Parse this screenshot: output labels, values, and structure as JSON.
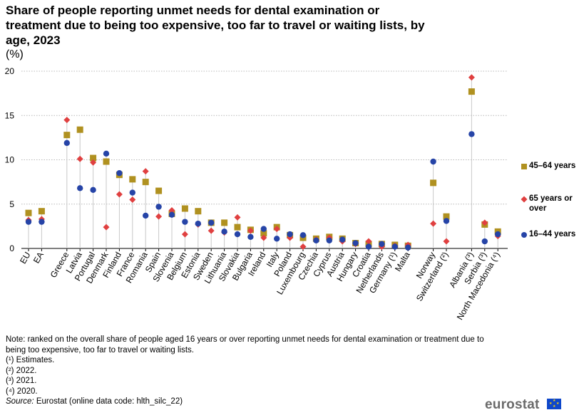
{
  "header": {
    "title": "Share of people reporting unmet needs for dental examination or treatment due to being too expensive, too far to travel or waiting lists, by age, 2023",
    "unit": "(%)"
  },
  "chart_data": {
    "type": "scatter",
    "title": "Share of people reporting unmet needs for dental examination or treatment due to being too expensive, too far to travel or waiting lists, by age, 2023",
    "ylabel": "(%)",
    "ylim": [
      0,
      20
    ],
    "yticks": [
      0,
      5,
      10,
      15,
      20
    ],
    "grid": true,
    "legend_position": "right",
    "groups": [
      [
        "EU",
        "EA"
      ],
      [
        "Greece",
        "Latvia",
        "Portugal",
        "Denmark",
        "Finland",
        "France",
        "Romania",
        "Spain",
        "Slovenia",
        "Belgium",
        "Estonia",
        "Sweden",
        "Lithuania",
        "Slovakia",
        "Bulgaria",
        "Ireland",
        "Italy",
        "Poland",
        "Luxembourg",
        "Czechia",
        "Cyprus",
        "Austria",
        "Hungary",
        "Croatia",
        "Netherlands",
        "Germany (¹)",
        "Malta"
      ],
      [
        "Norway",
        "Switzerland (²)"
      ],
      [
        "Albania (³)",
        "Serbia (³)",
        "North Macedonia (⁴)"
      ]
    ],
    "categories": [
      "EU",
      "EA",
      "Greece",
      "Latvia",
      "Portugal",
      "Denmark",
      "Finland",
      "France",
      "Romania",
      "Spain",
      "Slovenia",
      "Belgium",
      "Estonia",
      "Sweden",
      "Lithuania",
      "Slovakia",
      "Bulgaria",
      "Ireland",
      "Italy",
      "Poland",
      "Luxembourg",
      "Czechia",
      "Cyprus",
      "Austria",
      "Hungary",
      "Croatia",
      "Netherlands",
      "Germany (¹)",
      "Malta",
      "Norway",
      "Switzerland (²)",
      "Albania (³)",
      "Serbia (³)",
      "North Macedonia (⁴)"
    ],
    "series": [
      {
        "name": "45–64 years",
        "marker": "square",
        "color": "#b09120",
        "values": [
          4.0,
          4.2,
          12.8,
          13.4,
          10.2,
          9.8,
          8.3,
          7.8,
          7.5,
          6.5,
          3.9,
          4.5,
          4.2,
          2.9,
          2.9,
          2.4,
          2.1,
          1.7,
          2.4,
          1.5,
          1.2,
          1.1,
          1.3,
          1.1,
          0.6,
          0.5,
          0.5,
          0.4,
          0.3,
          7.4,
          3.6,
          17.7,
          2.7,
          1.9
        ]
      },
      {
        "name": "65 years or over",
        "marker": "diamond",
        "color": "#e04040",
        "values": [
          3.2,
          3.3,
          14.5,
          10.1,
          9.7,
          2.4,
          6.1,
          5.5,
          8.7,
          3.6,
          4.3,
          1.6,
          2.7,
          2.0,
          1.8,
          3.5,
          2.0,
          1.2,
          2.2,
          1.2,
          0.2,
          1.0,
          1.2,
          0.8,
          0.5,
          0.8,
          0.2,
          0.3,
          0.4,
          2.8,
          0.8,
          19.3,
          2.9,
          1.4
        ]
      },
      {
        "name": "16–44 years",
        "marker": "circle",
        "color": "#2644a7",
        "values": [
          3.0,
          3.0,
          11.9,
          6.8,
          6.6,
          10.7,
          8.5,
          6.3,
          3.7,
          4.7,
          3.8,
          3.0,
          2.8,
          2.9,
          1.9,
          1.6,
          1.3,
          2.2,
          1.1,
          1.6,
          1.5,
          0.9,
          0.9,
          1.0,
          0.6,
          0.2,
          0.5,
          0.2,
          0.1,
          9.8,
          3.1,
          12.9,
          0.8,
          1.6
        ]
      }
    ]
  },
  "legend": [
    {
      "label": "45–64 years",
      "marker": "square",
      "color": "#b09120"
    },
    {
      "label": "65 years or over",
      "marker": "diamond",
      "color": "#e04040"
    },
    {
      "label": "16–44 years",
      "marker": "circle",
      "color": "#2644a7"
    }
  ],
  "notes": {
    "note": "Note: ranked on the overall share of people aged 16 years or over reporting unmet needs for dental examination or treatment due to being too expensive, too far to travel or waiting lists.",
    "fn1": "(¹) Estimates.",
    "fn2": "(²) 2022.",
    "fn3": "(³) 2021.",
    "fn4": "(⁴) 2020.",
    "source_label": "Source:",
    "source_text": " Eurostat (online data code: hlth_silc_22)"
  },
  "branding": {
    "logo_text": "eurostat"
  }
}
